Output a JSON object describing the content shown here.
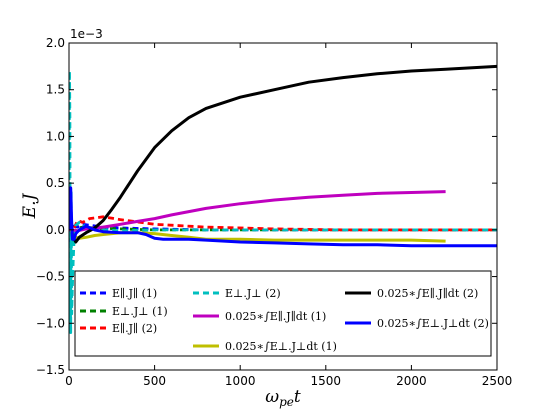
{
  "chart_data": {
    "type": "line",
    "xlabel": "ωpet",
    "ylabel": "E.J",
    "y_offset_label": "1e−3",
    "xlim": [
      0,
      2500
    ],
    "ylim": [
      -0.0015,
      0.002
    ],
    "x_ticks": [
      0,
      500,
      1000,
      1500,
      2000,
      2500
    ],
    "x_tick_labels": [
      "0",
      "500",
      "1000",
      "1500",
      "2000",
      "2500"
    ],
    "y_ticks": [
      -0.0015,
      -0.001,
      -0.0005,
      0,
      0.0005,
      0.001,
      0.0015,
      0.002
    ],
    "y_tick_labels": [
      "−1.5",
      "−1.0",
      "−0.5",
      "0.0",
      "0.5",
      "1.0",
      "1.5",
      "2.0"
    ],
    "grid": false,
    "legend_placement": "lower-center",
    "series": [
      {
        "name": "E∥.J∥ (1)",
        "color": "#0000ff",
        "dash": true,
        "x": [
          0,
          5,
          10,
          20,
          30,
          50,
          80,
          120,
          200,
          300,
          500,
          800,
          1200,
          1600,
          2000,
          2500
        ],
        "y": [
          0,
          0.00018,
          -0.00012,
          -8e-05,
          4e-05,
          3e-05,
          6e-05,
          5e-05,
          3e-05,
          2e-05,
          1e-05,
          0,
          0,
          0,
          0,
          0
        ]
      },
      {
        "name": "E⊥.J⊥ (1)",
        "color": "#008000",
        "dash": true,
        "x": [
          0,
          5,
          10,
          15,
          20,
          30,
          50,
          80,
          150,
          300,
          500,
          1000,
          1500,
          2000,
          2500
        ],
        "y": [
          0,
          0.0003,
          -0.0001,
          -0.00015,
          -0.00012,
          -4e-05,
          2e-05,
          3e-05,
          2e-05,
          1e-05,
          0,
          0,
          0,
          0,
          0
        ]
      },
      {
        "name": "E∥.J∥ (2)",
        "color": "#ff0000",
        "dash": true,
        "x": [
          0,
          5,
          10,
          20,
          30,
          50,
          80,
          120,
          200,
          300,
          500,
          800,
          1200,
          1600,
          2000,
          2500
        ],
        "y": [
          0,
          0.0002,
          -0.0001,
          -0.0001,
          2e-05,
          0.0001,
          8e-05,
          0.00012,
          0.00014,
          0.00011,
          6e-05,
          3e-05,
          1e-05,
          0,
          0,
          0
        ]
      },
      {
        "name": "E⊥.J⊥ (2)",
        "color": "#00bfbf",
        "dash": true,
        "x": [
          0,
          3,
          5,
          7,
          10,
          13,
          16,
          20,
          25,
          30,
          40,
          60,
          100,
          150,
          200,
          300,
          500,
          1000,
          1500,
          2000,
          2500
        ],
        "y": [
          0,
          0.0017,
          0.0012,
          -0.0005,
          -0.0011,
          0.0004,
          -0.0009,
          -0.0006,
          -0.0003,
          -0.0001,
          5e-05,
          8e-05,
          3e-05,
          1e-05,
          0,
          -1e-05,
          0,
          0,
          0,
          0,
          0
        ]
      },
      {
        "name": "0.025∗∫E∥.J∥dt (1)",
        "color": "#bf00bf",
        "dash": false,
        "x": [
          0,
          10,
          20,
          50,
          100,
          200,
          300,
          400,
          500,
          600,
          800,
          1000,
          1200,
          1400,
          1600,
          1800,
          2000,
          2200
        ],
        "y": [
          0,
          1e-05,
          0,
          -1e-05,
          1e-05,
          3e-05,
          6e-05,
          9e-05,
          0.00012,
          0.00016,
          0.00023,
          0.00028,
          0.00032,
          0.00035,
          0.00037,
          0.00039,
          0.0004,
          0.00041
        ]
      },
      {
        "name": "0.025∗∫E⊥.J⊥dt (1)",
        "color": "#bfbf00",
        "dash": false,
        "x": [
          0,
          10,
          20,
          40,
          60,
          100,
          150,
          200,
          300,
          400,
          500,
          600,
          700,
          800,
          1000,
          1200,
          1500,
          1800,
          2000,
          2200
        ],
        "y": [
          0,
          3e-05,
          -5e-05,
          -8e-05,
          -9e-05,
          -8e-05,
          -6e-05,
          -5e-05,
          -3e-05,
          -3e-05,
          -4e-05,
          -6e-05,
          -8e-05,
          -0.0001,
          -0.0001,
          -0.00011,
          -0.00011,
          -0.00011,
          -0.00011,
          -0.00012
        ]
      },
      {
        "name": "0.025∗∫E∥.J∥dt (2)",
        "color": "#000000",
        "dash": false,
        "x": [
          0,
          10,
          20,
          40,
          60,
          100,
          150,
          200,
          250,
          300,
          400,
          500,
          600,
          700,
          800,
          1000,
          1200,
          1400,
          1600,
          1800,
          2000,
          2200,
          2500
        ],
        "y": [
          0,
          0.0002,
          -7e-05,
          -0.00013,
          -8e-05,
          -3e-05,
          2e-05,
          0.0001,
          0.00022,
          0.00035,
          0.00063,
          0.00088,
          0.00106,
          0.0012,
          0.0013,
          0.00142,
          0.0015,
          0.00158,
          0.00163,
          0.00167,
          0.0017,
          0.00172,
          0.00175
        ]
      },
      {
        "name": "0.025∗∫E⊥.J⊥dt (2)",
        "color": "#0000ff",
        "dash": false,
        "x": [
          0,
          5,
          10,
          15,
          20,
          30,
          40,
          60,
          100,
          150,
          200,
          300,
          400,
          450,
          500,
          550,
          600,
          700,
          800,
          1000,
          1200,
          1400,
          1600,
          1800,
          2000,
          2200,
          2500
        ],
        "y": [
          0,
          0.0004,
          0.00045,
          0.0001,
          -0.0001,
          -0.0001,
          -4e-05,
          0,
          4e-05,
          0,
          -2e-05,
          -3e-05,
          -3e-05,
          -5e-05,
          -9e-05,
          -0.0001,
          -0.0001,
          -0.0001,
          -0.00011,
          -0.00013,
          -0.00014,
          -0.00015,
          -0.00016,
          -0.00016,
          -0.00017,
          -0.00017,
          -0.00017
        ]
      }
    ]
  }
}
